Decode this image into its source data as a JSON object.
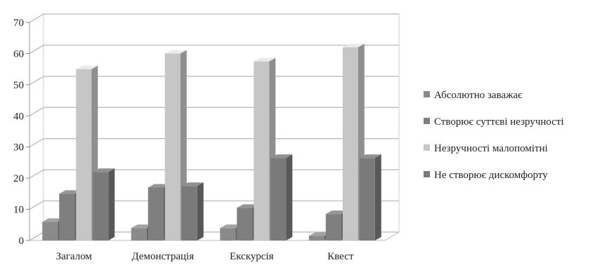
{
  "chart_data": {
    "type": "bar",
    "title": "",
    "xlabel": "",
    "ylabel": "",
    "ylim": [
      0,
      70
    ],
    "yticks": [
      0,
      10,
      20,
      30,
      40,
      50,
      60,
      70
    ],
    "grid": true,
    "legend_position": "right",
    "categories": [
      "Загалом",
      "Демонстрація",
      "Екскурсія",
      "Квест"
    ],
    "series": [
      {
        "name": "Абсолютно заважає",
        "values": [
          6,
          4,
          4,
          1.5
        ],
        "color": "#8a8a8a"
      },
      {
        "name": "Створює суттєві незручності",
        "values": [
          15,
          17,
          10.5,
          8.5
        ],
        "color": "#7f7f7f"
      },
      {
        "name": "Незручності малопомітні",
        "values": [
          55,
          60,
          57.5,
          62
        ],
        "color": "#c6c6c6"
      },
      {
        "name": "Не створює дискомфорту",
        "values": [
          22,
          17.5,
          26.5,
          26.5
        ],
        "color": "#7a7a7a"
      }
    ]
  }
}
